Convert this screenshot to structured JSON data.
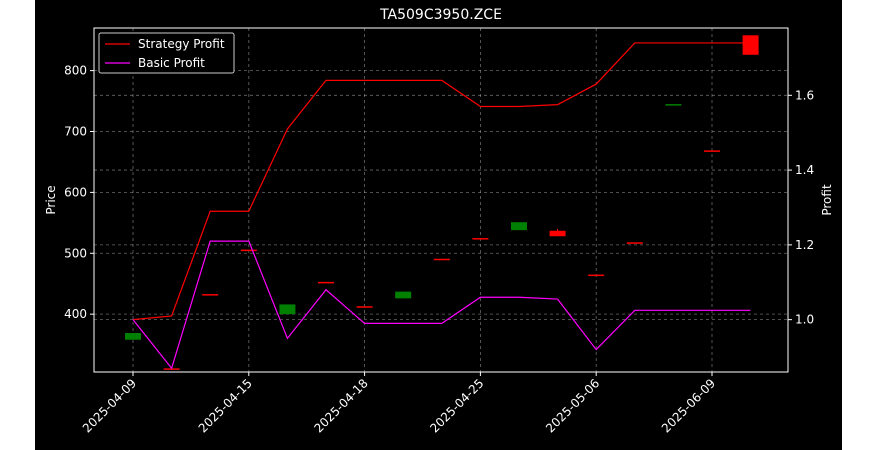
{
  "chart_data": {
    "type": "line",
    "title": "TA509C3950.ZCE",
    "ylabel": "Price",
    "y2label": "Profit",
    "xlabel": "",
    "x_ticks": [
      "2025-04-09",
      "2025-04-15",
      "2025-04-18",
      "2025-04-25",
      "2025-05-06",
      "2025-06-09"
    ],
    "ylim": [
      305,
      870
    ],
    "y_ticks": [
      400,
      500,
      600,
      700,
      800
    ],
    "y2lim": [
      0.86,
      1.78
    ],
    "y2_ticks": [
      "1.0",
      "1.2",
      "1.4",
      "1.6"
    ],
    "legend": {
      "position": "top-left"
    },
    "grid": true,
    "series": [
      {
        "name": "Strategy Profit",
        "color": "#ff0000",
        "axis": "right",
        "values": [
          1.0,
          1.01,
          1.29,
          1.29,
          1.51,
          1.64,
          1.64,
          1.64,
          1.64,
          1.57,
          1.57,
          1.575,
          1.63,
          1.74,
          1.74,
          1.74,
          1.74
        ]
      },
      {
        "name": "Basic Profit",
        "color": "#ff00ff",
        "axis": "right",
        "values": [
          1.0,
          0.87,
          1.21,
          1.21,
          0.95,
          1.08,
          0.99,
          0.99,
          0.99,
          1.06,
          1.06,
          1.055,
          0.92,
          1.025,
          1.025,
          1.025,
          1.025
        ]
      }
    ],
    "candles": [
      {
        "x": 0,
        "open": 358,
        "close": 369,
        "high": 369,
        "low": 358,
        "color": "#008000"
      },
      {
        "x": 1,
        "open": 311,
        "close": 311,
        "high": 311,
        "low": 311,
        "color": "#ff0000"
      },
      {
        "x": 2,
        "open": 433,
        "close": 433,
        "high": 433,
        "low": 433,
        "color": "#ff0000"
      },
      {
        "x": 3,
        "open": 506,
        "close": 506,
        "high": 506,
        "low": 506,
        "color": "#ff0000"
      },
      {
        "x": 4,
        "open": 400,
        "close": 416,
        "high": 416,
        "low": 400,
        "color": "#008000"
      },
      {
        "x": 5,
        "open": 453,
        "close": 453,
        "high": 453,
        "low": 453,
        "color": "#ff0000"
      },
      {
        "x": 6,
        "open": 413,
        "close": 413,
        "high": 413,
        "low": 413,
        "color": "#ff0000"
      },
      {
        "x": 7,
        "open": 426,
        "close": 437,
        "high": 437,
        "low": 426,
        "color": "#008000"
      },
      {
        "x": 8,
        "open": 491,
        "close": 491,
        "high": 491,
        "low": 491,
        "color": "#ff0000"
      },
      {
        "x": 9,
        "open": 525,
        "close": 525,
        "high": 525,
        "low": 525,
        "color": "#ff0000"
      },
      {
        "x": 10,
        "open": 538,
        "close": 551,
        "high": 551,
        "low": 538,
        "color": "#008000"
      },
      {
        "x": 11,
        "open": 537,
        "close": 528,
        "high": 540,
        "low": 528,
        "color": "#ff0000"
      },
      {
        "x": 12,
        "open": 465,
        "close": 465,
        "high": 465,
        "low": 465,
        "color": "#ff0000"
      },
      {
        "x": 13,
        "open": 518,
        "close": 518,
        "high": 518,
        "low": 518,
        "color": "#ff0000"
      },
      {
        "x": 14,
        "open": 745,
        "close": 745,
        "high": 745,
        "low": 745,
        "color": "#008000"
      },
      {
        "x": 15,
        "open": 669,
        "close": 669,
        "high": 669,
        "low": 669,
        "color": "#ff0000"
      },
      {
        "x": 16,
        "open": 858,
        "close": 826,
        "high": 858,
        "low": 826,
        "color": "#ff0000"
      }
    ]
  }
}
